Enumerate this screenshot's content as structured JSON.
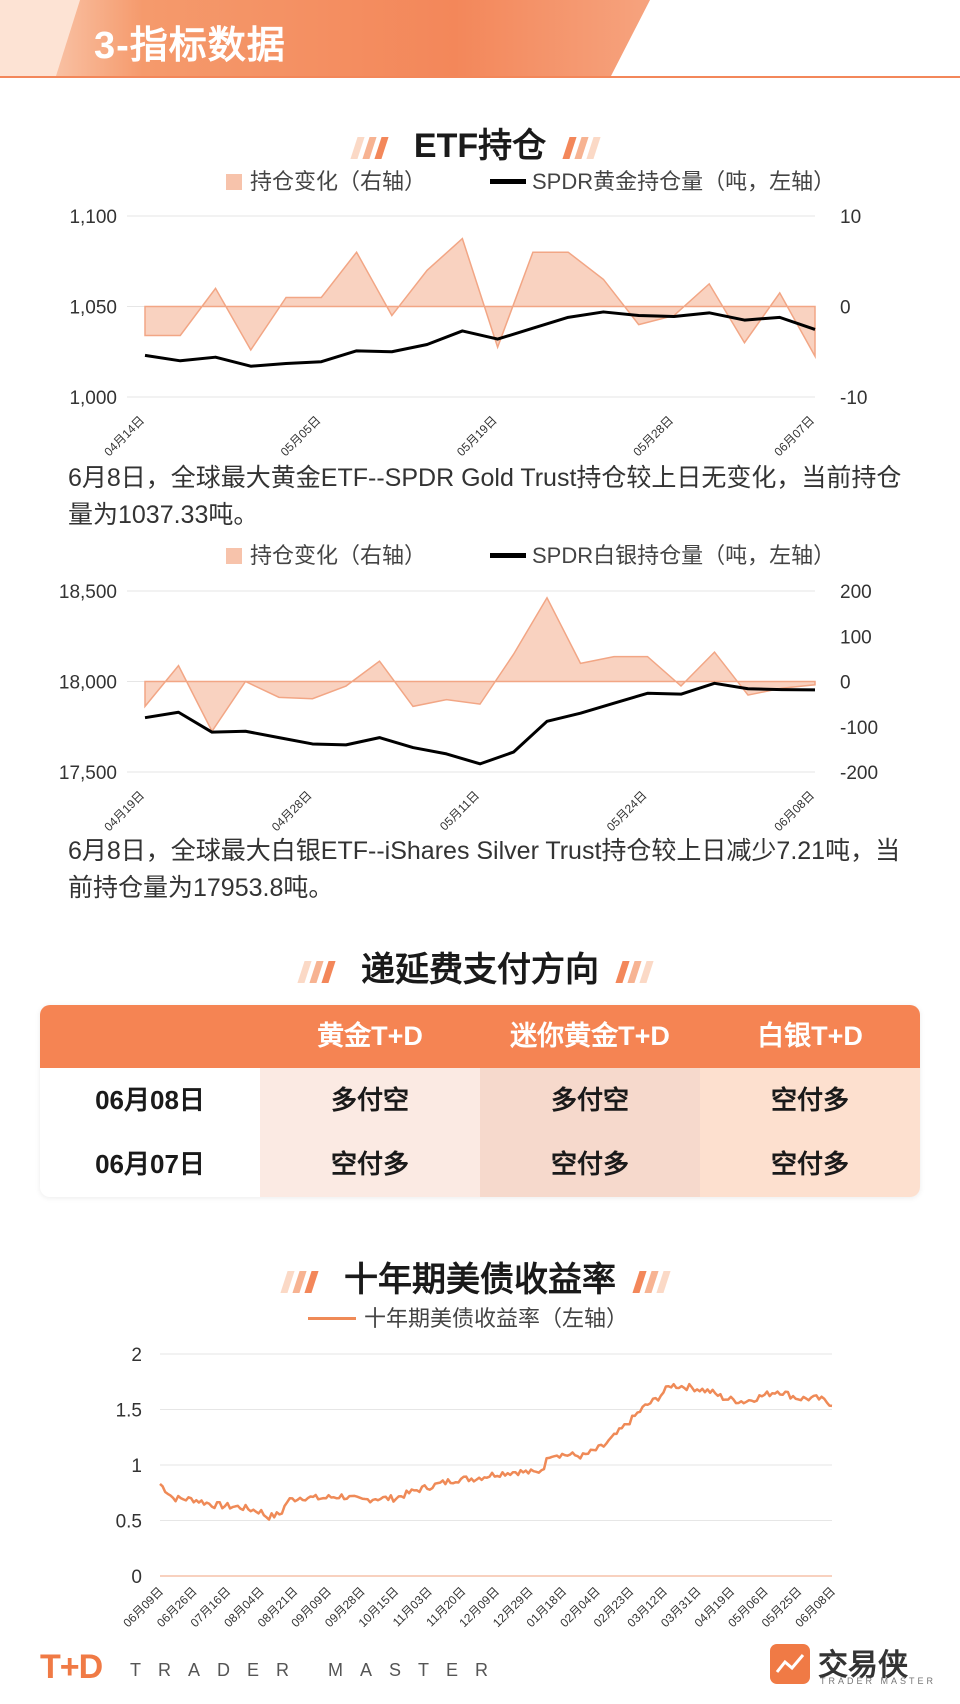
{
  "header": {
    "title": "3-指标数据"
  },
  "etf_section": {
    "title": "ETF持仓"
  },
  "gold_chart": {
    "legend_area": "持仓变化（右轴）",
    "legend_line": "SPDR黄金持仓量（吨，左轴）",
    "left_ticks": [
      "1,100",
      "1,050",
      "1,000"
    ],
    "right_ticks": [
      "10",
      "0",
      "-10"
    ],
    "x_ticks": [
      "04月14日",
      "05月05日",
      "05月19日",
      "05月28日",
      "06月07日"
    ],
    "text": "6月8日，全球最大黄金ETF--SPDR Gold Trust持仓较上日无变化，当前持仓量为1037.33吨。"
  },
  "silver_chart": {
    "legend_area": "持仓变化（右轴）",
    "legend_line": "SPDR白银持仓量（吨，左轴）",
    "left_ticks": [
      "18,500",
      "18,000",
      "17,500"
    ],
    "right_ticks": [
      "200",
      "100",
      "0",
      "-100",
      "-200"
    ],
    "x_ticks": [
      "04月19日",
      "04月28日",
      "05月11日",
      "05月24日",
      "06月08日"
    ],
    "text": "6月8日，全球最大白银ETF--iShares Silver Trust持仓较上日减少7.21吨，当前持仓量为17953.8吨。"
  },
  "roll_section": {
    "title": "递延费支付方向"
  },
  "roll_table": {
    "headers": [
      "",
      "黄金T+D",
      "迷你黄金T+D",
      "白银T+D"
    ],
    "rows": [
      {
        "date": "06月08日",
        "gold": "多付空",
        "mini_gold": "多付空",
        "silver": "空付多"
      },
      {
        "date": "06月07日",
        "gold": "空付多",
        "mini_gold": "空付多",
        "silver": "空付多"
      }
    ]
  },
  "yield_section": {
    "title": "十年期美债收益率"
  },
  "yield_chart": {
    "legend": "十年期美债收益率（左轴）",
    "y_ticks": [
      "2",
      "1.5",
      "1",
      "0.5",
      "0"
    ],
    "x_ticks": [
      "06月09日",
      "06月26日",
      "07月16日",
      "08月04日",
      "08月21日",
      "09月09日",
      "09月28日",
      "10月15日",
      "11月03日",
      "11月20日",
      "12月09日",
      "12月29日",
      "01月18日",
      "02月04日",
      "02月23日",
      "03月12日",
      "03月31日",
      "04月19日",
      "05月06日",
      "05月25日",
      "06月08日"
    ]
  },
  "footer": {
    "brand_logo": "T+D",
    "brand_sub": "TRADER MASTER",
    "partner_name": "交易侠",
    "partner_sub": "TRADER MASTER"
  },
  "colors": {
    "accent": "#f3875a",
    "area_fill": "#f7c3ab",
    "line": "#000000",
    "yield_line": "#ef8a57"
  },
  "chart_data": [
    {
      "type": "line",
      "name": "gold_etf",
      "categories": [
        "04月14日",
        "",
        "",
        "",
        "",
        "05月05日",
        "",
        "",
        "",
        "",
        "05月19日",
        "",
        "",
        "",
        "",
        "05月28日",
        "",
        "",
        "",
        "06月07日"
      ],
      "series": [
        {
          "name": "持仓变化（右轴）",
          "axis": "right",
          "kind": "area",
          "values": [
            -3.2,
            -3.2,
            2.0,
            -4.8,
            1.0,
            1.0,
            6.0,
            -1.0,
            4.0,
            7.5,
            -4.5,
            6.0,
            6.0,
            3.0,
            -2.0,
            -1.0,
            2.5,
            -4.0,
            1.5,
            -5.5
          ]
        },
        {
          "name": "SPDR黄金持仓量（吨，左轴）",
          "axis": "left",
          "kind": "line",
          "values": [
            1023,
            1020,
            1022,
            1017,
            1018.5,
            1019.5,
            1025.5,
            1025,
            1029,
            1036.5,
            1032,
            1038,
            1044,
            1047,
            1045,
            1044.5,
            1046.5,
            1042.5,
            1044,
            1037.33
          ]
        }
      ],
      "ylim_left": [
        1000,
        1100
      ],
      "ylim_right": [
        -10,
        10
      ]
    },
    {
      "type": "line",
      "name": "silver_etf",
      "categories": [
        "04月19日",
        "",
        "",
        "",
        "",
        "04月28日",
        "",
        "",
        "",
        "",
        "05月11日",
        "",
        "",
        "",
        "",
        "05月24日",
        "",
        "",
        "",
        "",
        "06月08日"
      ],
      "series": [
        {
          "name": "持仓变化（右轴）",
          "axis": "right",
          "kind": "area",
          "values": [
            -55,
            35,
            -110,
            0,
            -35,
            -38,
            -10,
            45,
            -55,
            -40,
            -50,
            60,
            185,
            40,
            55,
            55,
            -10,
            65,
            -30,
            -15,
            -7.21
          ]
        },
        {
          "name": "SPDR白银持仓量（吨，左轴）",
          "axis": "left",
          "kind": "line",
          "values": [
            17800,
            17830,
            17720,
            17725,
            17690,
            17655,
            17650,
            17690,
            17635,
            17600,
            17545,
            17610,
            17780,
            17825,
            17880,
            17935,
            17930,
            17990,
            17960,
            17955,
            17953.8
          ]
        }
      ],
      "ylim_left": [
        17500,
        18500
      ],
      "ylim_right": [
        -200,
        200
      ]
    },
    {
      "type": "line",
      "name": "us10y",
      "x_range": [
        "06月09日",
        "06月08日"
      ],
      "series": [
        {
          "name": "十年期美债收益率（左轴）",
          "anchors": [
            [
              0,
              0.83
            ],
            [
              0.02,
              0.7
            ],
            [
              0.05,
              0.69
            ],
            [
              0.08,
              0.64
            ],
            [
              0.12,
              0.62
            ],
            [
              0.15,
              0.58
            ],
            [
              0.16,
              0.53
            ],
            [
              0.18,
              0.56
            ],
            [
              0.19,
              0.68
            ],
            [
              0.21,
              0.71
            ],
            [
              0.24,
              0.7
            ],
            [
              0.27,
              0.72
            ],
            [
              0.3,
              0.68
            ],
            [
              0.32,
              0.7
            ],
            [
              0.35,
              0.7
            ],
            [
              0.38,
              0.77
            ],
            [
              0.41,
              0.82
            ],
            [
              0.44,
              0.87
            ],
            [
              0.47,
              0.88
            ],
            [
              0.5,
              0.92
            ],
            [
              0.53,
              0.94
            ],
            [
              0.56,
              0.93
            ],
            [
              0.57,
              0.97
            ],
            [
              0.58,
              1.1
            ],
            [
              0.61,
              1.09
            ],
            [
              0.63,
              1.08
            ],
            [
              0.66,
              1.17
            ],
            [
              0.68,
              1.28
            ],
            [
              0.7,
              1.4
            ],
            [
              0.72,
              1.52
            ],
            [
              0.74,
              1.6
            ],
            [
              0.76,
              1.72
            ],
            [
              0.79,
              1.7
            ],
            [
              0.82,
              1.66
            ],
            [
              0.84,
              1.6
            ],
            [
              0.87,
              1.57
            ],
            [
              0.9,
              1.63
            ],
            [
              0.92,
              1.67
            ],
            [
              0.95,
              1.6
            ],
            [
              0.98,
              1.6
            ],
            [
              1.0,
              1.55
            ]
          ]
        }
      ],
      "ylim": [
        0,
        2
      ]
    }
  ]
}
